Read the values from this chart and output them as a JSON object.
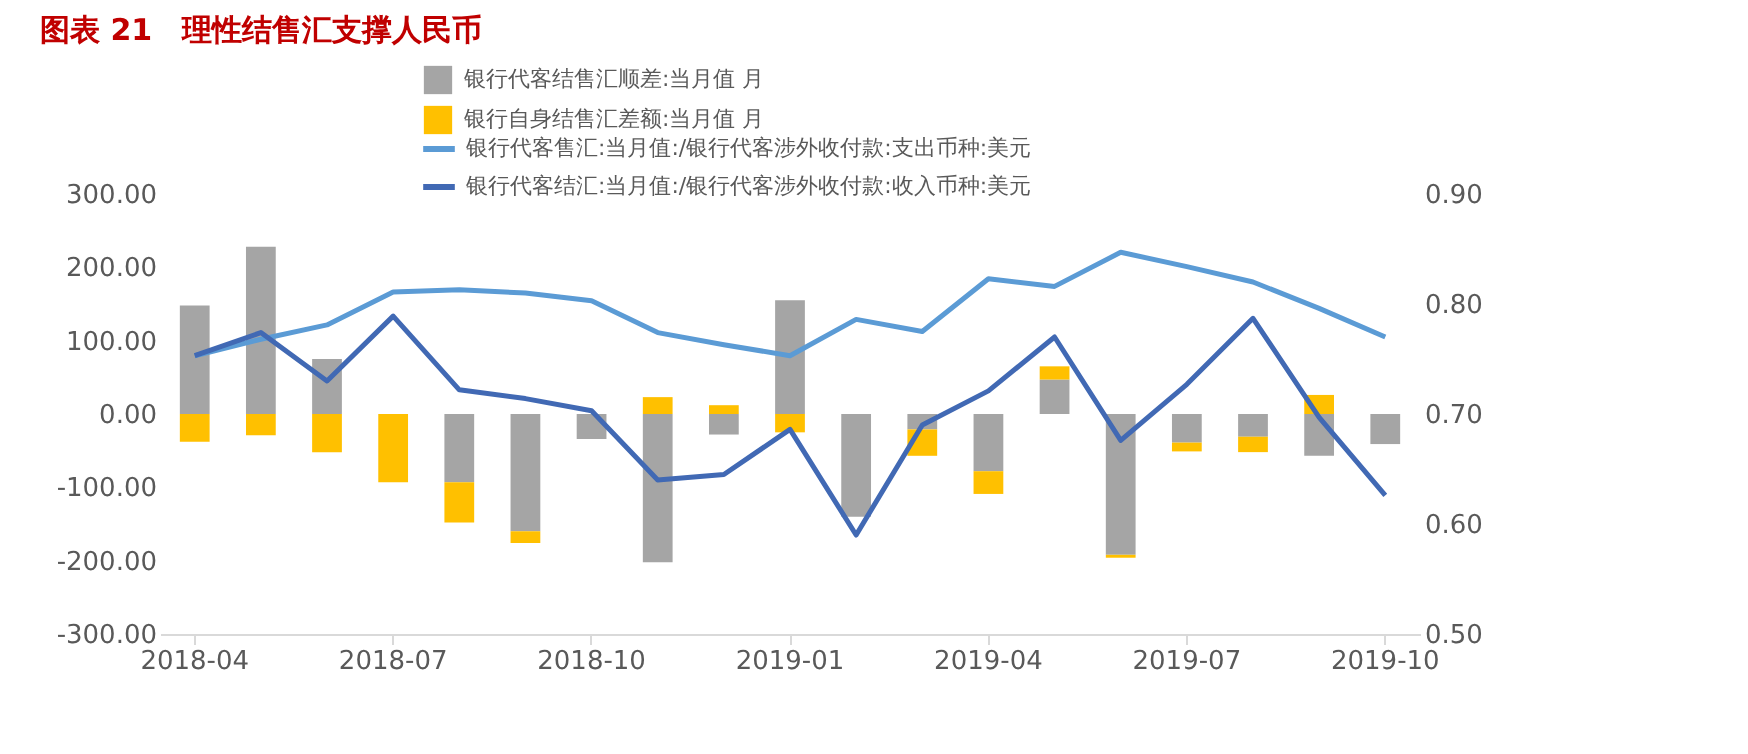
{
  "chart_data": {
    "type": "bar",
    "title": "图表 21　理性结售汇支撑人民币",
    "categories": [
      "2018-04",
      null,
      null,
      "2018-07",
      null,
      null,
      "2018-10",
      null,
      null,
      "2019-01",
      null,
      null,
      "2019-04",
      null,
      null,
      "2019-07",
      null,
      null,
      "2019-10"
    ],
    "stacked": true,
    "series": [
      {
        "name": "银行代客结售汇顺差:当月值 月",
        "type": "bar",
        "color": "#a5a5a5",
        "values": [
          148,
          228,
          75,
          0,
          -93,
          -160,
          -34,
          -202,
          -28,
          155,
          -140,
          -21,
          -78,
          47,
          -192,
          -39,
          -31,
          -57,
          -41
        ]
      },
      {
        "name": "银行自身结售汇差额:当月值 月",
        "type": "bar",
        "color": "#ffc000",
        "values": [
          -38,
          -29,
          -52,
          -93,
          -55,
          -16,
          0,
          23,
          12,
          -25,
          0,
          -36,
          -31,
          18,
          -4,
          -12,
          -21,
          26,
          0
        ]
      },
      {
        "name": "银行代客售汇:当月值:/银行代客涉外收付款:支出币种:美元",
        "type": "line",
        "axis": "y2",
        "color": "#5b9bd5",
        "values": [
          0.753,
          0.768,
          0.781,
          0.811,
          0.813,
          0.81,
          0.803,
          0.774,
          0.763,
          0.753,
          0.786,
          0.775,
          0.823,
          0.816,
          0.847,
          0.834,
          0.82,
          0.796,
          0.77
        ]
      },
      {
        "name": "银行代客结汇:当月值:/银行代客涉外收付款:收入币种:美元",
        "type": "line",
        "axis": "y2",
        "color": "#4169b4",
        "values": [
          0.753,
          0.774,
          0.73,
          0.789,
          0.722,
          0.714,
          0.703,
          0.64,
          0.645,
          0.686,
          0.59,
          0.69,
          0.721,
          0.77,
          0.676,
          0.727,
          0.787,
          0.697,
          0.626
        ]
      }
    ],
    "ylim": [
      -300,
      300
    ],
    "yticks": [
      {
        "value": -300,
        "label": "-300.00"
      },
      {
        "value": -200,
        "label": "-200.00"
      },
      {
        "value": -100,
        "label": "-100.00"
      },
      {
        "value": 0,
        "label": "0.00"
      },
      {
        "value": 100,
        "label": "100.00"
      },
      {
        "value": 200,
        "label": "200.00"
      },
      {
        "value": 300,
        "label": "300.00"
      }
    ],
    "y2lim": [
      0.5,
      0.9
    ],
    "y2ticks": [
      {
        "value": 0.5,
        "label": "0.50"
      },
      {
        "value": 0.6,
        "label": "0.60"
      },
      {
        "value": 0.7,
        "label": "0.70"
      },
      {
        "value": 0.8,
        "label": "0.80"
      },
      {
        "value": 0.9,
        "label": "0.90"
      }
    ],
    "legend": "top",
    "grid": false
  }
}
